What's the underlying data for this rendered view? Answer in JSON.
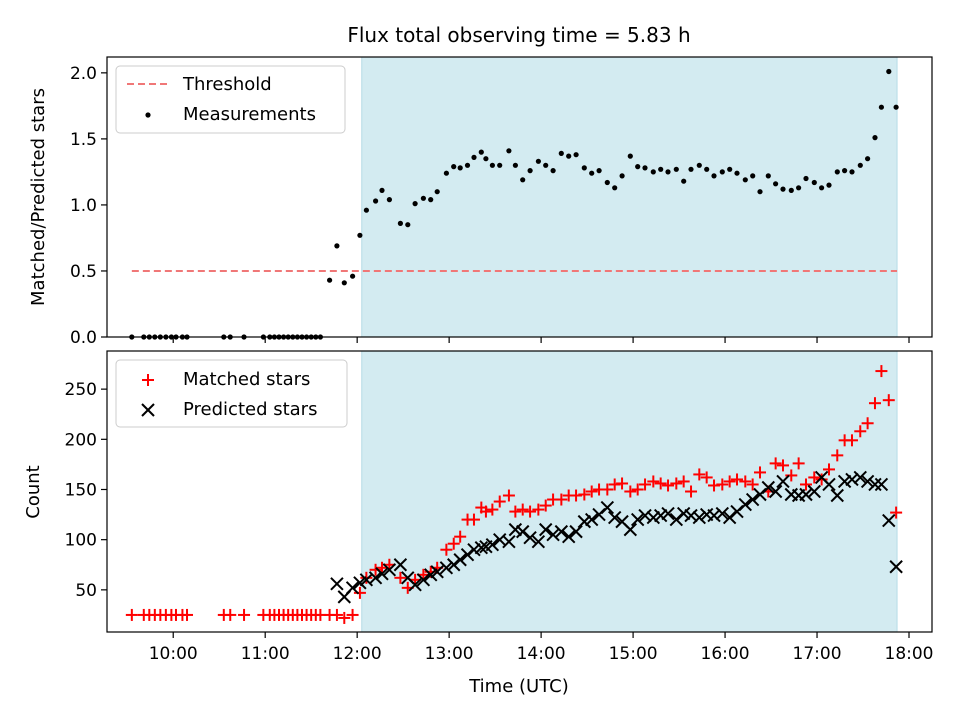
{
  "figure": {
    "title": "Flux total observing time = 5.83 h",
    "xlabel": "Time (UTC)"
  },
  "chart_data": [
    {
      "type": "scatter",
      "panel": "top",
      "ylabel": "Matched/Predicted stars",
      "xlim": [
        9.28,
        18.25
      ],
      "ylim": [
        0,
        2.12
      ],
      "yticks": [
        0.0,
        0.5,
        1.0,
        1.5,
        2.0
      ],
      "shaded_span": [
        12.05,
        17.87
      ],
      "shade_color": "#d3ebf1",
      "legend_position": "upper-left",
      "legend": [
        {
          "label": "Threshold",
          "kind": "dashed-line",
          "color": "#f07777"
        },
        {
          "label": "Measurements",
          "kind": "dot",
          "color": "#000000"
        }
      ],
      "threshold": {
        "value": 0.5,
        "x_start": 9.55,
        "x_end": 17.87
      },
      "measurements": {
        "x": [
          9.55,
          9.68,
          9.74,
          9.8,
          9.86,
          9.92,
          9.98,
          10.03,
          10.1,
          10.15,
          10.55,
          10.62,
          10.77,
          10.98,
          11.05,
          11.1,
          11.15,
          11.2,
          11.25,
          11.3,
          11.35,
          11.4,
          11.45,
          11.5,
          11.55,
          11.6,
          11.7,
          11.78,
          11.86,
          11.95,
          12.03,
          12.1,
          12.2,
          12.27,
          12.35,
          12.47,
          12.55,
          12.63,
          12.72,
          12.8,
          12.87,
          12.97,
          13.05,
          13.12,
          13.2,
          13.27,
          13.35,
          13.4,
          13.47,
          13.55,
          13.65,
          13.72,
          13.8,
          13.88,
          13.97,
          14.05,
          14.13,
          14.22,
          14.3,
          14.38,
          14.47,
          14.55,
          14.63,
          14.72,
          14.8,
          14.88,
          14.97,
          15.05,
          15.13,
          15.22,
          15.3,
          15.38,
          15.47,
          15.55,
          15.63,
          15.72,
          15.8,
          15.88,
          15.97,
          16.05,
          16.13,
          16.22,
          16.3,
          16.38,
          16.47,
          16.55,
          16.63,
          16.72,
          16.8,
          16.88,
          16.97,
          17.05,
          17.13,
          17.22,
          17.3,
          17.38,
          17.47,
          17.55,
          17.63,
          17.7,
          17.78,
          17.86
        ],
        "y": [
          0.0,
          0.0,
          0.0,
          0.0,
          0.0,
          0.0,
          0.0,
          0.0,
          0.0,
          0.0,
          0.0,
          0.0,
          0.0,
          0.0,
          0.0,
          0.0,
          0.0,
          0.0,
          0.0,
          0.0,
          0.0,
          0.0,
          0.0,
          0.0,
          0.0,
          0.0,
          0.43,
          0.69,
          0.41,
          0.46,
          0.77,
          0.96,
          1.03,
          1.11,
          1.04,
          0.86,
          0.85,
          1.01,
          1.05,
          1.04,
          1.1,
          1.24,
          1.29,
          1.28,
          1.3,
          1.36,
          1.4,
          1.35,
          1.3,
          1.3,
          1.41,
          1.3,
          1.19,
          1.26,
          1.33,
          1.3,
          1.26,
          1.39,
          1.37,
          1.38,
          1.28,
          1.24,
          1.26,
          1.17,
          1.13,
          1.22,
          1.37,
          1.29,
          1.28,
          1.25,
          1.27,
          1.25,
          1.27,
          1.18,
          1.27,
          1.3,
          1.27,
          1.22,
          1.25,
          1.27,
          1.24,
          1.19,
          1.22,
          1.1,
          1.22,
          1.16,
          1.12,
          1.11,
          1.13,
          1.2,
          1.17,
          1.13,
          1.15,
          1.25,
          1.26,
          1.25,
          1.3,
          1.35,
          1.51,
          1.74,
          2.01,
          1.74
        ]
      }
    },
    {
      "type": "scatter",
      "panel": "bottom",
      "ylabel": "Count",
      "xlim": [
        9.28,
        18.25
      ],
      "ylim": [
        8,
        288
      ],
      "yticks": [
        50,
        100,
        150,
        200,
        250
      ],
      "xticks": [
        10,
        11,
        12,
        13,
        14,
        15,
        16,
        17,
        18
      ],
      "xticklabels": [
        "10:00",
        "11:00",
        "12:00",
        "13:00",
        "14:00",
        "15:00",
        "16:00",
        "17:00",
        "18:00"
      ],
      "shaded_span": [
        12.05,
        17.87
      ],
      "shade_color": "#d3ebf1",
      "legend_position": "upper-left",
      "series": [
        {
          "name": "Matched stars",
          "marker": "plus",
          "color": "#ff0000",
          "x": [
            9.55,
            9.68,
            9.74,
            9.8,
            9.86,
            9.92,
            9.98,
            10.03,
            10.1,
            10.15,
            10.55,
            10.62,
            10.77,
            10.98,
            11.05,
            11.1,
            11.15,
            11.2,
            11.25,
            11.3,
            11.35,
            11.4,
            11.45,
            11.5,
            11.55,
            11.6,
            11.7,
            11.78,
            11.86,
            11.95,
            12.03,
            12.1,
            12.2,
            12.27,
            12.35,
            12.47,
            12.55,
            12.63,
            12.72,
            12.8,
            12.87,
            12.97,
            13.05,
            13.12,
            13.2,
            13.27,
            13.35,
            13.4,
            13.47,
            13.55,
            13.65,
            13.72,
            13.8,
            13.88,
            13.97,
            14.05,
            14.13,
            14.22,
            14.3,
            14.38,
            14.47,
            14.55,
            14.63,
            14.72,
            14.8,
            14.88,
            14.97,
            15.05,
            15.13,
            15.22,
            15.3,
            15.38,
            15.47,
            15.55,
            15.63,
            15.72,
            15.8,
            15.88,
            15.97,
            16.05,
            16.13,
            16.22,
            16.3,
            16.38,
            16.47,
            16.55,
            16.63,
            16.72,
            16.8,
            16.88,
            16.97,
            17.05,
            17.13,
            17.22,
            17.3,
            17.38,
            17.47,
            17.55,
            17.63,
            17.7,
            17.78,
            17.86
          ],
          "values": [
            25,
            25,
            25,
            25,
            25,
            25,
            25,
            25,
            25,
            25,
            25,
            25,
            25,
            25,
            25,
            25,
            25,
            25,
            25,
            25,
            25,
            25,
            25,
            25,
            25,
            25,
            25,
            25,
            22,
            25,
            47,
            62,
            70,
            72,
            75,
            62,
            52,
            60,
            65,
            68,
            72,
            90,
            96,
            103,
            120,
            120,
            132,
            128,
            130,
            138,
            144,
            128,
            130,
            128,
            130,
            134,
            140,
            140,
            144,
            144,
            145,
            148,
            150,
            150,
            155,
            156,
            148,
            150,
            155,
            158,
            156,
            154,
            156,
            158,
            148,
            165,
            162,
            154,
            155,
            158,
            160,
            158,
            155,
            167,
            148,
            176,
            174,
            164,
            176,
            155,
            162,
            160,
            170,
            184,
            199,
            199,
            208,
            216,
            236,
            268,
            239,
            127
          ]
        },
        {
          "name": "Predicted stars",
          "marker": "x",
          "color": "#000000",
          "x": [
            11.78,
            11.86,
            11.95,
            12.03,
            12.1,
            12.2,
            12.27,
            12.35,
            12.47,
            12.55,
            12.63,
            12.72,
            12.8,
            12.87,
            12.97,
            13.05,
            13.12,
            13.2,
            13.27,
            13.35,
            13.4,
            13.47,
            13.55,
            13.65,
            13.72,
            13.8,
            13.88,
            13.97,
            14.05,
            14.13,
            14.22,
            14.3,
            14.38,
            14.47,
            14.55,
            14.63,
            14.72,
            14.8,
            14.88,
            14.97,
            15.05,
            15.13,
            15.22,
            15.3,
            15.38,
            15.47,
            15.55,
            15.63,
            15.72,
            15.8,
            15.88,
            15.97,
            16.05,
            16.13,
            16.22,
            16.3,
            16.38,
            16.47,
            16.55,
            16.63,
            16.72,
            16.8,
            16.88,
            16.97,
            17.05,
            17.13,
            17.22,
            17.3,
            17.38,
            17.47,
            17.55,
            17.63,
            17.7,
            17.78,
            17.86
          ],
          "values": [
            56,
            43,
            52,
            57,
            60,
            62,
            66,
            70,
            75,
            62,
            55,
            60,
            65,
            68,
            72,
            75,
            80,
            85,
            90,
            92,
            93,
            95,
            100,
            98,
            110,
            108,
            102,
            98,
            110,
            105,
            108,
            103,
            108,
            118,
            120,
            125,
            132,
            122,
            118,
            110,
            120,
            124,
            122,
            124,
            126,
            120,
            126,
            124,
            122,
            125,
            124,
            126,
            122,
            128,
            135,
            140,
            145,
            152,
            148,
            158,
            145,
            144,
            145,
            148,
            162,
            155,
            144,
            158,
            160,
            162,
            158,
            155,
            155,
            119,
            73
          ]
        }
      ]
    }
  ]
}
